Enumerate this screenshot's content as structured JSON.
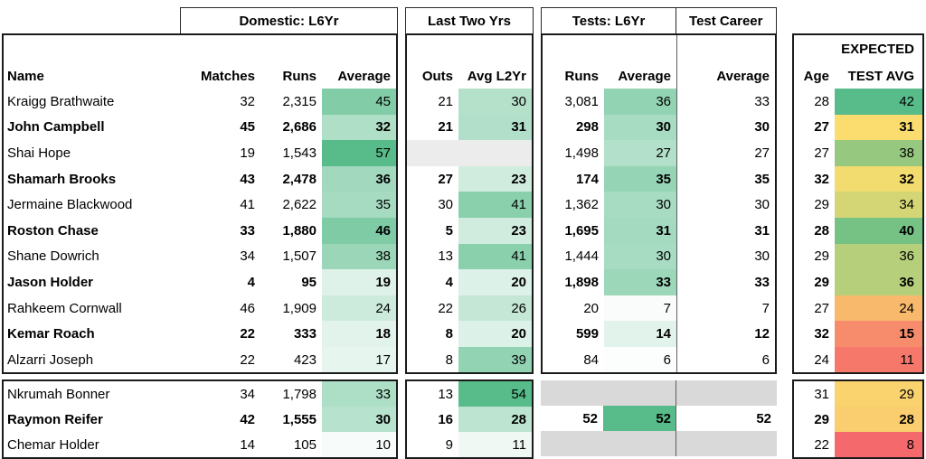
{
  "groups": {
    "domestic": "Domestic: L6Yr",
    "last_two_yrs": "Last Two Yrs",
    "tests": "Tests: L6Yr",
    "test_career": "Test Career"
  },
  "headers": {
    "name": "Name",
    "matches": "Matches",
    "runs": "Runs",
    "average": "Average",
    "outs": "Outs",
    "avg_l2yr": "Avg L2Yr",
    "tests_runs": "Runs",
    "tests_average": "Average",
    "career_average": "Average",
    "age": "Age",
    "expected_line1": "EXPECTED",
    "expected_line2": "TEST AVG"
  },
  "colors": {
    "green_max": "#57BB8A",
    "blank_light_gray": "#ECECEC",
    "blank_dark_gray": "#D9D9D9",
    "border": "#1a1a1a",
    "divider": "#5f5f5f"
  },
  "players": [
    {
      "name": "Kraigg Brathwaite",
      "bold": false,
      "matches": "32",
      "runs": "2,315",
      "dom_avg": "45",
      "dom_avg_bg": "#82CCA8",
      "outs": "21",
      "avg_l2yr": "30",
      "avg_l2yr_bg": "#B5E1CB",
      "tests_runs": "3,081",
      "tests_avg": "36",
      "tests_avg_bg": "#91D3B3",
      "career_avg": "33",
      "age": "28",
      "expected": "42",
      "expected_bg": "#57BB8A"
    },
    {
      "name": "John Campbell",
      "bold": true,
      "matches": "45",
      "runs": "2,686",
      "dom_avg": "32",
      "dom_avg_bg": "#B0DFC8",
      "outs": "21",
      "avg_l2yr": "31",
      "avg_l2yr_bg": "#B1DFC9",
      "tests_runs": "298",
      "tests_avg": "30",
      "tests_avg_bg": "#A7DCC2",
      "career_avg": "30",
      "age": "27",
      "expected": "31",
      "expected_bg": "#FBDC6E"
    },
    {
      "name": "Shai Hope",
      "bold": false,
      "matches": "19",
      "runs": "1,543",
      "dom_avg": "57",
      "dom_avg_bg": "#57BB8A",
      "l2yr_blank": true,
      "outs": "",
      "avg_l2yr": "",
      "tests_runs": "1,498",
      "tests_avg": "27",
      "tests_avg_bg": "#B2E0CA",
      "career_avg": "27",
      "age": "27",
      "expected": "38",
      "expected_bg": "#96C87F"
    },
    {
      "name": "Shamarh Brooks",
      "bold": true,
      "matches": "43",
      "runs": "2,478",
      "dom_avg": "36",
      "dom_avg_bg": "#A2D9BE",
      "outs": "27",
      "avg_l2yr": "23",
      "avg_l2yr_bg": "#D0ECDE",
      "tests_runs": "174",
      "tests_avg": "35",
      "tests_avg_bg": "#95D4B5",
      "career_avg": "35",
      "age": "32",
      "expected": "32",
      "expected_bg": "#F3DC6F"
    },
    {
      "name": "Jermaine Blackwood",
      "bold": false,
      "matches": "41",
      "runs": "2,622",
      "dom_avg": "35",
      "dom_avg_bg": "#A6DBC1",
      "outs": "30",
      "avg_l2yr": "41",
      "avg_l2yr_bg": "#8AD0AD",
      "tests_runs": "1,362",
      "tests_avg": "30",
      "tests_avg_bg": "#A7DCC2",
      "career_avg": "30",
      "age": "29",
      "expected": "34",
      "expected_bg": "#D4D675"
    },
    {
      "name": "Roston Chase",
      "bold": true,
      "matches": "33",
      "runs": "1,880",
      "dom_avg": "46",
      "dom_avg_bg": "#7ECBA5",
      "outs": "5",
      "avg_l2yr": "23",
      "avg_l2yr_bg": "#D0ECDE",
      "tests_runs": "1,695",
      "tests_avg": "31",
      "tests_avg_bg": "#A4DABF",
      "career_avg": "31",
      "age": "28",
      "expected": "40",
      "expected_bg": "#76C285"
    },
    {
      "name": "Shane Dowrich",
      "bold": false,
      "matches": "34",
      "runs": "1,507",
      "dom_avg": "38",
      "dom_avg_bg": "#9BD6B9",
      "outs": "13",
      "avg_l2yr": "41",
      "avg_l2yr_bg": "#8AD0AD",
      "tests_runs": "1,444",
      "tests_avg": "30",
      "tests_avg_bg": "#A7DCC2",
      "career_avg": "30",
      "age": "29",
      "expected": "36",
      "expected_bg": "#B5CF7A"
    },
    {
      "name": "Jason Holder",
      "bold": true,
      "matches": "4",
      "runs": "95",
      "dom_avg": "19",
      "dom_avg_bg": "#DFF2E9",
      "outs": "4",
      "avg_l2yr": "20",
      "avg_l2yr_bg": "#DCF1E7",
      "tests_runs": "1,898",
      "tests_avg": "33",
      "tests_avg_bg": "#9CD7BA",
      "career_avg": "33",
      "age": "29",
      "expected": "36",
      "expected_bg": "#B5CF7A"
    },
    {
      "name": "Rahkeem Cornwall",
      "bold": false,
      "matches": "46",
      "runs": "1,909",
      "dom_avg": "24",
      "dom_avg_bg": "#CDEBDC",
      "outs": "22",
      "avg_l2yr": "26",
      "avg_l2yr_bg": "#C4E7D6",
      "tests_runs": "20",
      "tests_avg": "7",
      "tests_avg_bg": "#FAFCFB",
      "career_avg": "7",
      "age": "27",
      "expected": "24",
      "expected_bg": "#F9B96D"
    },
    {
      "name": "Kemar Roach",
      "bold": true,
      "matches": "22",
      "runs": "333",
      "dom_avg": "18",
      "dom_avg_bg": "#E2F3EB",
      "outs": "8",
      "avg_l2yr": "20",
      "avg_l2yr_bg": "#DCF1E7",
      "tests_runs": "599",
      "tests_avg": "14",
      "tests_avg_bg": "#E2F3EB",
      "career_avg": "12",
      "age": "32",
      "expected": "15",
      "expected_bg": "#F68C6C"
    },
    {
      "name": "Alzarri Joseph",
      "bold": false,
      "matches": "22",
      "runs": "423",
      "dom_avg": "17",
      "dom_avg_bg": "#E6F5EE",
      "outs": "8",
      "avg_l2yr": "39",
      "avg_l2yr_bg": "#92D3B3",
      "tests_runs": "84",
      "tests_avg": "6",
      "tests_avg_bg": "#FCFDFD",
      "career_avg": "6",
      "age": "24",
      "expected": "11",
      "expected_bg": "#F5786B"
    }
  ],
  "bench": [
    {
      "name": "Nkrumah Bonner",
      "bold": false,
      "matches": "34",
      "runs": "1,798",
      "dom_avg": "33",
      "dom_avg_bg": "#ADDEC6",
      "outs": "13",
      "avg_l2yr": "54",
      "avg_l2yr_bg": "#57BB8A",
      "tests_blank": true,
      "age": "31",
      "expected": "29",
      "expected_bg": "#FAD26E"
    },
    {
      "name": "Raymon Reifer",
      "bold": true,
      "matches": "42",
      "runs": "1,555",
      "dom_avg": "30",
      "dom_avg_bg": "#B7E2CD",
      "outs": "16",
      "avg_l2yr": "28",
      "avg_l2yr_bg": "#BDE4D1",
      "tests_runs": "52",
      "tests_avg": "52",
      "tests_avg_bg": "#57BB8A",
      "career_avg": "52",
      "age": "29",
      "expected": "28",
      "expected_bg": "#FACD6E"
    },
    {
      "name": "Chemar Holder",
      "bold": false,
      "matches": "14",
      "runs": "105",
      "dom_avg": "10",
      "dom_avg_bg": "#F7FBF9",
      "outs": "9",
      "avg_l2yr": "11",
      "avg_l2yr_bg": "#F0F8F4",
      "tests_blank": true,
      "age": "22",
      "expected": "8",
      "expected_bg": "#F4696B"
    }
  ]
}
